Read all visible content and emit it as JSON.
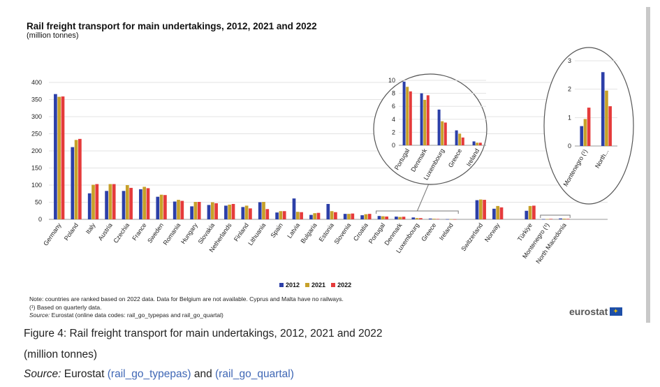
{
  "header": {
    "title": "Rail freight transport for main undertakings, 2012, 2021 and 2022",
    "subtitle": "(million tonnes)"
  },
  "legend": {
    "items": [
      {
        "label": "2012",
        "color": "#2c3fa8"
      },
      {
        "label": "2021",
        "color": "#c7a12a"
      },
      {
        "label": "2022",
        "color": "#e53b3b"
      }
    ]
  },
  "notes": {
    "line1": "Note: countries are ranked based on 2022 data. Data for Belgium are not available. Cyprus and Malta have no railways.",
    "line2": "(¹) Based on quarterly data.",
    "source_label": "Source:",
    "source_text": " Eurostat (online data codes: rail_go_typepas and rail_go_quartal)"
  },
  "logo": {
    "text": "eurostat"
  },
  "caption": {
    "figure": "Figure 4: Rail freight transport for main undertakings, 2012, 2021 and 2022",
    "unit": "(million tonnes)",
    "source_label": "Source:",
    "source_pre": " Eurostat ",
    "link1": "(rail_go_typepas)",
    "source_mid": " and ",
    "link2": "(rail_go_quartal)"
  },
  "chart_data": [
    {
      "type": "bar",
      "ylim": [
        0,
        400
      ],
      "yticks": [
        0,
        50,
        100,
        150,
        200,
        250,
        300,
        350,
        400
      ],
      "categories": [
        "Germany",
        "Poland",
        "Italy",
        "Austria",
        "Czechia",
        "France",
        "Sweden",
        "Romania",
        "Hungary",
        "Slovakia",
        "Netherlands",
        "Finland",
        "Lithuania",
        "Spain",
        "Latvia",
        "Bulgaria",
        "Estonia",
        "Slovenia",
        "Croatia",
        "Portugal",
        "Denmark",
        "Luxembourg",
        "Greece",
        "Ireland",
        "Switzerland",
        "Norway",
        "Türkiye",
        "Montenegro (¹)",
        "North Macedonia"
      ],
      "series": [
        {
          "name": "2012",
          "values": [
            366,
            211,
            76,
            83,
            83,
            88,
            66,
            52,
            38,
            42,
            40,
            36,
            50,
            20,
            61,
            13,
            45,
            16,
            12,
            9.8,
            8,
            5.5,
            2.3,
            0.6,
            56,
            31,
            25,
            0.7,
            2.6
          ]
        },
        {
          "name": "2021",
          "values": [
            358,
            232,
            101,
            103,
            100,
            95,
            72,
            57,
            51,
            50,
            43,
            40,
            51,
            24,
            22,
            18,
            24,
            16,
            15,
            9.0,
            7,
            3.7,
            1.8,
            0.4,
            58,
            39,
            39,
            0.95,
            1.95
          ]
        },
        {
          "name": "2022",
          "values": [
            359,
            235,
            103,
            103,
            92,
            91,
            71,
            54,
            51,
            47,
            45,
            32,
            30,
            24,
            21,
            19,
            21,
            17,
            16,
            8.3,
            7.7,
            3.5,
            1.2,
            0.4,
            57,
            35,
            40,
            1.35,
            1.4
          ]
        }
      ]
    },
    {
      "type": "bar",
      "ylim": [
        0,
        10
      ],
      "yticks": [
        0,
        2,
        4,
        6,
        8,
        10
      ],
      "categories": [
        "Portugal",
        "Denmark",
        "Luxembourg",
        "Greece",
        "Ireland"
      ],
      "series": [
        {
          "name": "2012",
          "values": [
            9.8,
            8.0,
            5.5,
            2.3,
            0.6
          ]
        },
        {
          "name": "2021",
          "values": [
            9.0,
            7.0,
            3.7,
            1.8,
            0.4
          ]
        },
        {
          "name": "2022",
          "values": [
            8.3,
            7.7,
            3.5,
            1.2,
            0.4
          ]
        }
      ]
    },
    {
      "type": "bar",
      "ylim": [
        0,
        3
      ],
      "yticks": [
        0,
        1,
        2,
        3
      ],
      "categories": [
        "Montenegro (¹)",
        "North..."
      ],
      "series": [
        {
          "name": "2012",
          "values": [
            0.7,
            2.6
          ]
        },
        {
          "name": "2021",
          "values": [
            0.95,
            1.95
          ]
        },
        {
          "name": "2022",
          "values": [
            1.35,
            1.4
          ]
        }
      ]
    }
  ]
}
